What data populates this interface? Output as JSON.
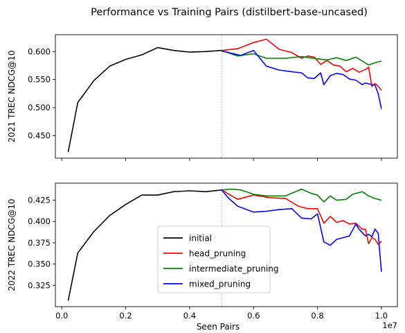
{
  "title": "Performance vs Training Pairs (distilbert-base-uncased)",
  "colors": {
    "initial": "#000000",
    "head_pruning": "#ff0000",
    "intermediate_pruning": "#008000",
    "mixed_pruning": "#0000ff",
    "vline": "#9ec9ee"
  },
  "chart_data": [
    {
      "type": "line",
      "ylabel": "2021 TREC NDCG@10",
      "xlabel": "",
      "x_scale_label": "",
      "xlim": [
        -200000,
        10500000
      ],
      "ylim": [
        0.41,
        0.63
      ],
      "xticks": [
        0,
        2000000,
        4000000,
        6000000,
        8000000,
        10000000
      ],
      "xtick_labels": [],
      "yticks": [
        0.45,
        0.5,
        0.55,
        0.6
      ],
      "ytick_labels": [
        "0.450",
        "0.500",
        "0.550",
        "0.600"
      ],
      "vline_x": 5000000,
      "grid": false,
      "legend": false,
      "series": [
        {
          "name": "initial",
          "color_key": "initial",
          "x": [
            200000,
            500000,
            1000000,
            1500000,
            2000000,
            2500000,
            3000000,
            3500000,
            4000000,
            4500000,
            5000000
          ],
          "y": [
            0.421,
            0.509,
            0.548,
            0.574,
            0.586,
            0.594,
            0.607,
            0.602,
            0.599,
            0.6,
            0.602
          ]
        },
        {
          "name": "head_pruning",
          "color_key": "head_pruning",
          "x": [
            5000000,
            5500000,
            6000000,
            6400000,
            6800000,
            7200000,
            7500000,
            7700000,
            7900000,
            8100000,
            8300000,
            8500000,
            8700000,
            8900000,
            9100000,
            9300000,
            9500000,
            9600000,
            9700000,
            9800000,
            9900000,
            10000000
          ],
          "y": [
            0.602,
            0.605,
            0.616,
            0.622,
            0.604,
            0.598,
            0.588,
            0.592,
            0.59,
            0.577,
            0.584,
            0.576,
            0.574,
            0.564,
            0.57,
            0.563,
            0.568,
            0.572,
            0.538,
            0.543,
            0.538,
            0.531
          ]
        },
        {
          "name": "intermediate_pruning",
          "color_key": "intermediate_pruning",
          "x": [
            5000000,
            5500000,
            6000000,
            6400000,
            7000000,
            7500000,
            8000000,
            8300000,
            8600000,
            8900000,
            9200000,
            9400000,
            9600000,
            9800000,
            10000000
          ],
          "y": [
            0.602,
            0.592,
            0.596,
            0.588,
            0.588,
            0.591,
            0.587,
            0.585,
            0.589,
            0.584,
            0.59,
            0.583,
            0.576,
            0.58,
            0.583
          ]
        },
        {
          "name": "mixed_pruning",
          "color_key": "mixed_pruning",
          "x": [
            5000000,
            5300000,
            5600000,
            6000000,
            6400000,
            6800000,
            7200000,
            7500000,
            7700000,
            7900000,
            8100000,
            8200000,
            8400000,
            8600000,
            8800000,
            9000000,
            9200000,
            9400000,
            9500000,
            9700000,
            9800000,
            9900000,
            10000000
          ],
          "y": [
            0.601,
            0.597,
            0.593,
            0.602,
            0.574,
            0.567,
            0.564,
            0.562,
            0.553,
            0.552,
            0.562,
            0.541,
            0.557,
            0.561,
            0.559,
            0.551,
            0.549,
            0.541,
            0.544,
            0.541,
            0.54,
            0.525,
            0.498
          ]
        }
      ]
    },
    {
      "type": "line",
      "ylabel": "2022 TREC NDCG@10",
      "xlabel": "Seen Pairs",
      "x_scale_label": "1e7",
      "xlim": [
        -200000,
        10500000
      ],
      "ylim": [
        0.3,
        0.445
      ],
      "xticks": [
        0,
        2000000,
        4000000,
        6000000,
        8000000,
        10000000
      ],
      "xtick_labels": [
        "0.0",
        "0.2",
        "0.4",
        "0.6",
        "0.8",
        "1.0"
      ],
      "yticks": [
        0.325,
        0.35,
        0.375,
        0.4,
        0.425
      ],
      "ytick_labels": [
        "0.325",
        "0.350",
        "0.375",
        "0.400",
        "0.425"
      ],
      "vline_x": 5000000,
      "grid": false,
      "legend": true,
      "legend_position": "lower center",
      "series": [
        {
          "name": "initial",
          "color_key": "initial",
          "x": [
            200000,
            500000,
            1000000,
            1500000,
            2000000,
            2500000,
            3000000,
            3500000,
            4000000,
            4500000,
            5000000
          ],
          "y": [
            0.307,
            0.363,
            0.388,
            0.407,
            0.42,
            0.431,
            0.431,
            0.435,
            0.436,
            0.435,
            0.437
          ]
        },
        {
          "name": "head_pruning",
          "color_key": "head_pruning",
          "x": [
            5000000,
            5500000,
            6000000,
            6500000,
            7000000,
            7400000,
            7700000,
            8000000,
            8200000,
            8400000,
            8600000,
            8800000,
            9000000,
            9200000,
            9400000,
            9500000,
            9600000,
            9700000,
            9800000,
            9900000,
            10000000
          ],
          "y": [
            0.437,
            0.426,
            0.431,
            0.428,
            0.427,
            0.418,
            0.415,
            0.415,
            0.398,
            0.406,
            0.399,
            0.401,
            0.397,
            0.398,
            0.391,
            0.391,
            0.374,
            0.381,
            0.379,
            0.373,
            0.377
          ]
        },
        {
          "name": "intermediate_pruning",
          "color_key": "intermediate_pruning",
          "x": [
            5000000,
            5300000,
            5600000,
            6000000,
            6400000,
            7000000,
            7500000,
            7800000,
            8000000,
            8200000,
            8400000,
            8600000,
            8900000,
            9100000,
            9400000,
            9600000,
            9800000,
            10000000
          ],
          "y": [
            0.437,
            0.438,
            0.437,
            0.432,
            0.43,
            0.43,
            0.438,
            0.433,
            0.431,
            0.423,
            0.43,
            0.425,
            0.426,
            0.432,
            0.435,
            0.43,
            0.427,
            0.425
          ]
        },
        {
          "name": "mixed_pruning",
          "color_key": "mixed_pruning",
          "x": [
            5000000,
            5200000,
            5500000,
            6000000,
            6400000,
            6800000,
            7200000,
            7500000,
            7800000,
            8000000,
            8200000,
            8400000,
            8600000,
            8800000,
            9000000,
            9200000,
            9300000,
            9500000,
            9600000,
            9700000,
            9800000,
            9900000,
            10000000
          ],
          "y": [
            0.437,
            0.428,
            0.418,
            0.411,
            0.412,
            0.414,
            0.415,
            0.404,
            0.403,
            0.409,
            0.376,
            0.372,
            0.379,
            0.381,
            0.383,
            0.397,
            0.391,
            0.383,
            0.385,
            0.382,
            0.391,
            0.386,
            0.341
          ]
        }
      ]
    }
  ]
}
